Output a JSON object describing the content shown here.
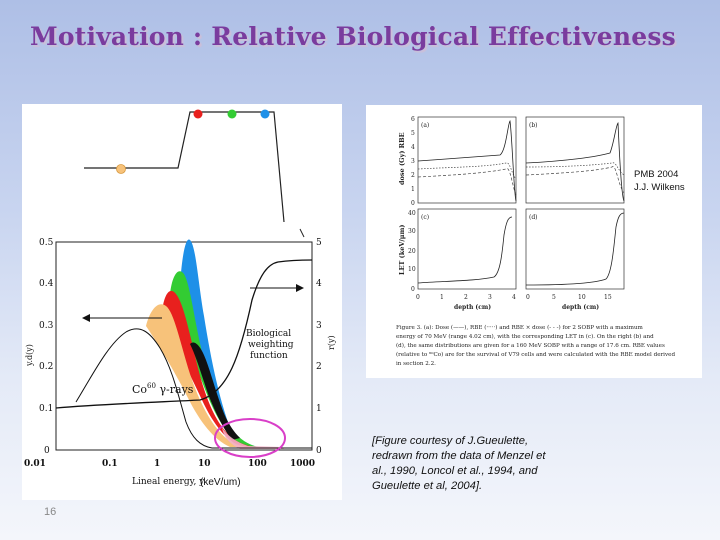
{
  "slide": {
    "title": "Motivation : Relative Biological Effectiveness",
    "slide_number": "16",
    "courtesy_text": "[Figure courtesy of J.Gueulette, redrawn from the data of Menzel et al., 1990, Loncol et al., 1994, and Gueulette et al, 2004].",
    "citation_line1": "PMB 2004",
    "citation_line2": "J.J. Wilkens"
  },
  "left_figure": {
    "left_axis_ticks": [
      "0.5",
      "0.4",
      "0.3",
      "0.2",
      "0.1",
      "0"
    ],
    "right_axis_ticks": [
      "5",
      "4",
      "3",
      "2",
      "1",
      "0"
    ],
    "x_ticks": [
      "0.01",
      "0.1",
      "1",
      "10",
      "100",
      "1000"
    ],
    "left_axis_label": "y.d(y)",
    "right_axis_label": "r(y)",
    "x_axis_label": "Lineal energy, y",
    "x_unit_label": "(keV/um)",
    "curve_label_1": "Biological",
    "curve_label_2": "weighting",
    "curve_label_3": "function",
    "co_label": "Co",
    "co_sup": "60",
    "co_suffix": " γ-rays",
    "colors": {
      "blue": "#1e90e8",
      "green": "#33cc33",
      "red": "#e8201e",
      "orange": "#f7c27a",
      "circle": "#d93fc8"
    }
  },
  "right_figure": {
    "panel_a": "(a)",
    "panel_b": "(b)",
    "panel_c": "(c)",
    "panel_d": "(d)",
    "top_ylabel": "dose (Gy) RBE",
    "bottom_ylabel": "LET (keV/μm)",
    "top_yticks_left": [
      "6",
      "5",
      "4",
      "3",
      "2",
      "1",
      "0"
    ],
    "bottom_yticks": [
      "40",
      "30",
      "20",
      "10",
      "0"
    ],
    "xticks_left": [
      "0",
      "1",
      "2",
      "3",
      "4"
    ],
    "xticks_right": [
      "0",
      "5",
      "10",
      "15"
    ],
    "xlabel": "depth (cm)",
    "caption_line1": "Figure 3. (a): Dose (——), RBE (·····) and RBE × dose (- - -) for 2 SOBP with a maximum",
    "caption_line2": "energy of 70 MeV (range 4.02 cm), with the corresponding LET in (c). On the right (b) and",
    "caption_line3": "(d), the same distributions are given for a 160 MeV SOBP with a range of 17.6 cm. RBE values",
    "caption_line4": "(relative to ⁶⁰Co) are for the survival of V79 cells and were calculated with the RBE model derived",
    "caption_line5": "in section 2.2."
  }
}
